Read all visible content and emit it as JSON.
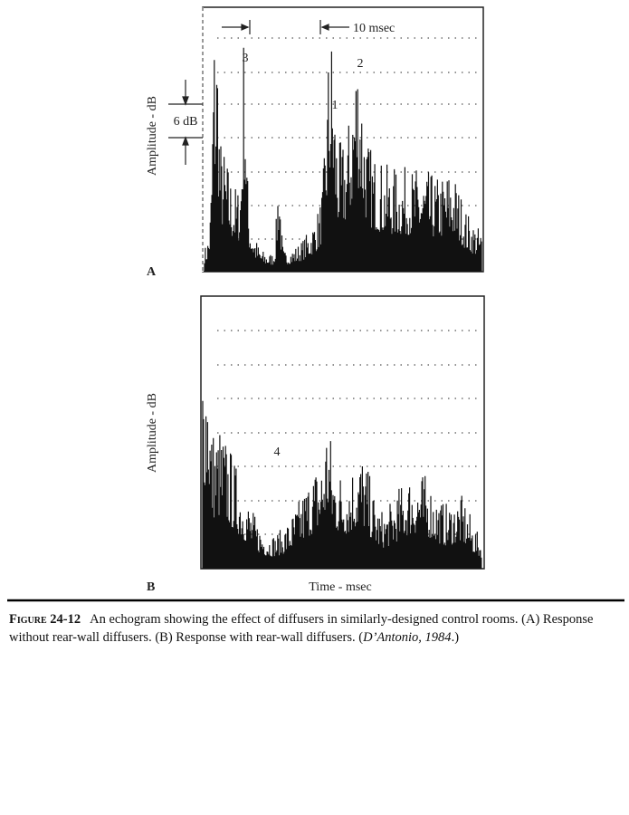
{
  "panel_a": {
    "label": "A",
    "y_label": "Amplitude - dB",
    "peak_labels": [
      "3",
      "2",
      "1"
    ],
    "time_marker": "10 msec",
    "level_marker": "6 dB"
  },
  "panel_b": {
    "label": "B",
    "y_label": "Amplitude - dB",
    "peak_label": "4",
    "x_label": "Time - msec"
  },
  "caption": {
    "figure_label": "Figure 24-12",
    "text": "An echogram showing the effect of diffusers in similarly-designed control rooms. (A) Response without rear-wall diffusers. (B) Response with rear-wall diffusers. (",
    "citation": "D’Antonio, 1984",
    "text_end": ".)"
  }
}
